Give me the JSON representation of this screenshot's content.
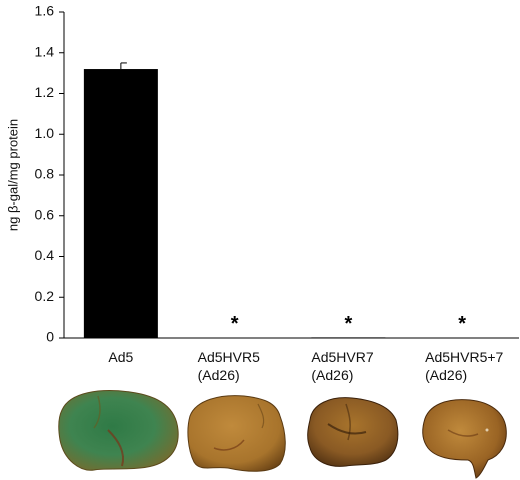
{
  "chart_data": {
    "type": "bar",
    "ylabel": "ng β-gal/mg protein",
    "ylim": [
      0,
      1.6
    ],
    "yticks": [
      "0",
      "0.2",
      "0.4",
      "0.6",
      "0.8",
      "1.0",
      "1.2",
      "1.4",
      "1.6"
    ],
    "categories": [
      [
        "Ad5"
      ],
      [
        "Ad5HVR5",
        "(Ad26)"
      ],
      [
        "Ad5HVR7",
        "(Ad26)"
      ],
      [
        "Ad5HVR5+7",
        "(Ad26)"
      ]
    ],
    "values": [
      1.32,
      0.002,
      0.003,
      0.0
    ],
    "error": [
      0.03,
      0,
      0,
      0
    ],
    "significance": [
      "",
      "*",
      "*",
      "*"
    ],
    "bar_color": "#000000"
  },
  "photos": {
    "colors": [
      "#3f7a4a",
      "#a5732a",
      "#8a5a24",
      "#9a6424"
    ]
  }
}
